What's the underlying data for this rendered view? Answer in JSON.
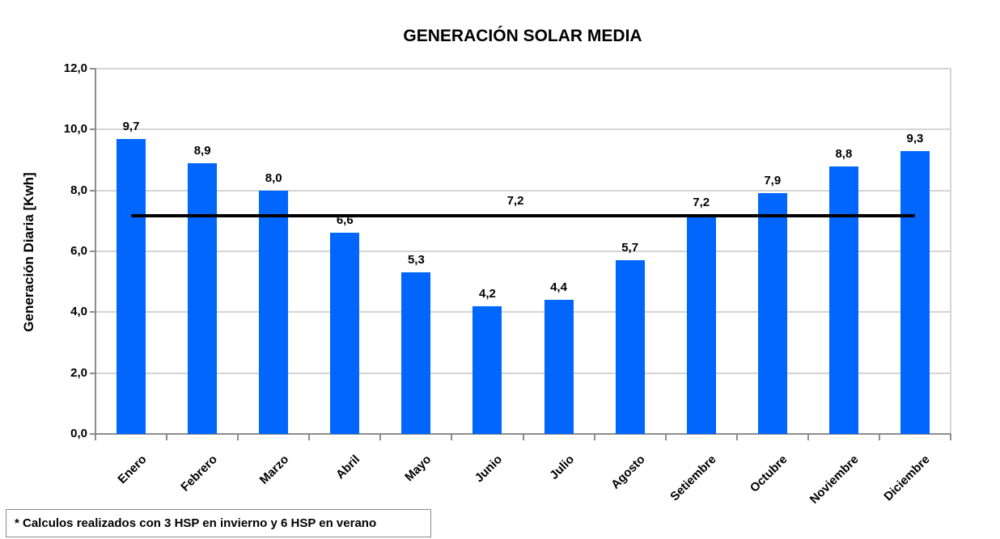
{
  "chart_data": {
    "type": "bar",
    "title": "GENERACIÓN SOLAR MEDIA",
    "ylabel": "Generación Diaria [Kwh]",
    "xlabel": "",
    "ylim": [
      0,
      12
    ],
    "ytick_step": 2,
    "yticks": [
      {
        "value": 0,
        "label": "0,0"
      },
      {
        "value": 2,
        "label": "2,0"
      },
      {
        "value": 4,
        "label": "4,0"
      },
      {
        "value": 6,
        "label": "6,0"
      },
      {
        "value": 8,
        "label": "8,0"
      },
      {
        "value": 10,
        "label": "10,0"
      },
      {
        "value": 12,
        "label": "12,0"
      }
    ],
    "grid": true,
    "legend": false,
    "categories": [
      "Enero",
      "Febrero",
      "Marzo",
      "Abril",
      "Mayo",
      "Junio",
      "Julio",
      "Agosto",
      "Setiembre",
      "Octubre",
      "Noviembre",
      "Diciembre"
    ],
    "series": [
      {
        "name": "generacion-diaria-bars",
        "type": "bar",
        "values": [
          9.7,
          8.9,
          8.0,
          6.6,
          5.3,
          4.2,
          4.4,
          5.7,
          7.2,
          7.9,
          8.8,
          9.3
        ],
        "labels": [
          "9,7",
          "8,9",
          "8,0",
          "6,6",
          "5,3",
          "4,2",
          "4,4",
          "5,7",
          "7,2",
          "7,9",
          "8,8",
          "9,3"
        ]
      },
      {
        "name": "media-line",
        "type": "line",
        "value": 7.17,
        "label": "7,2"
      }
    ],
    "annotation": "* Calculos realizados con 3 HSP en invierno y 6 HSP en verano"
  },
  "colors": {
    "bar": "#0066FE",
    "avg_line": "#000000",
    "grid": "#D4D4D4",
    "axis": "#8C8C8C",
    "text": "#000000",
    "footnote_border": "#8A8A8A"
  }
}
